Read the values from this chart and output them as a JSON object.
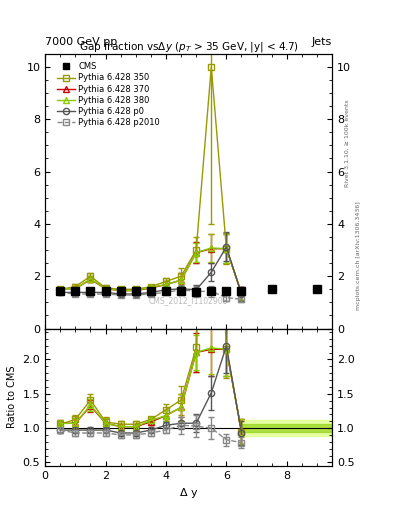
{
  "watermark": "CMS_2012_I1102908",
  "cms_x": [
    0.5,
    1.0,
    1.5,
    2.0,
    2.5,
    3.0,
    3.5,
    4.0,
    4.5,
    5.0,
    5.5,
    6.0,
    6.5,
    7.5,
    9.0
  ],
  "cms_y": [
    1.42,
    1.42,
    1.42,
    1.42,
    1.42,
    1.42,
    1.42,
    1.42,
    1.42,
    1.38,
    1.42,
    1.42,
    1.42,
    1.52,
    1.52
  ],
  "cms_yerr": [
    0.06,
    0.06,
    0.06,
    0.06,
    0.06,
    0.06,
    0.06,
    0.06,
    0.06,
    0.06,
    0.06,
    0.06,
    0.12,
    0.12,
    0.12
  ],
  "p350_x": [
    0.5,
    1.0,
    1.5,
    2.0,
    2.5,
    3.0,
    3.5,
    4.0,
    4.5,
    5.0,
    5.5,
    6.0,
    6.5
  ],
  "p350_y": [
    1.5,
    1.6,
    2.0,
    1.55,
    1.5,
    1.5,
    1.6,
    1.8,
    2.0,
    3.0,
    10.0,
    3.05,
    1.35
  ],
  "p350_yerr": [
    0.06,
    0.1,
    0.12,
    0.1,
    0.06,
    0.06,
    0.06,
    0.12,
    0.3,
    0.5,
    6.0,
    0.6,
    0.25
  ],
  "p370_x": [
    0.5,
    1.0,
    1.5,
    2.0,
    2.5,
    3.0,
    3.5,
    4.0,
    4.5,
    5.0,
    5.5,
    6.0,
    6.5
  ],
  "p370_y": [
    1.52,
    1.52,
    1.88,
    1.52,
    1.45,
    1.45,
    1.55,
    1.68,
    1.85,
    2.9,
    3.05,
    3.05,
    1.35
  ],
  "p370_yerr": [
    0.06,
    0.1,
    0.12,
    0.1,
    0.06,
    0.06,
    0.06,
    0.12,
    0.28,
    0.4,
    0.55,
    0.55,
    0.25
  ],
  "p380_x": [
    0.5,
    1.0,
    1.5,
    2.0,
    2.5,
    3.0,
    3.5,
    4.0,
    4.5,
    5.0,
    5.5,
    6.0,
    6.5
  ],
  "p380_y": [
    1.52,
    1.52,
    1.9,
    1.52,
    1.45,
    1.45,
    1.58,
    1.68,
    1.85,
    2.9,
    3.08,
    3.05,
    1.35
  ],
  "p380_yerr": [
    0.06,
    0.1,
    0.12,
    0.1,
    0.06,
    0.06,
    0.06,
    0.12,
    0.28,
    0.35,
    0.55,
    0.55,
    0.25
  ],
  "pp0_x": [
    0.5,
    1.0,
    1.5,
    2.0,
    2.5,
    3.0,
    3.5,
    4.0,
    4.5,
    5.0,
    5.5,
    6.0,
    6.5
  ],
  "pp0_y": [
    1.38,
    1.38,
    1.38,
    1.38,
    1.32,
    1.32,
    1.38,
    1.48,
    1.52,
    1.48,
    2.15,
    3.12,
    1.32
  ],
  "pp0_yerr": [
    0.06,
    0.06,
    0.06,
    0.06,
    0.06,
    0.06,
    0.06,
    0.06,
    0.12,
    0.18,
    0.35,
    0.55,
    0.25
  ],
  "pp2010_x": [
    0.5,
    1.0,
    1.5,
    2.0,
    2.5,
    3.0,
    3.5,
    4.0,
    4.5,
    5.0,
    5.5,
    6.0,
    6.5
  ],
  "pp2010_y": [
    1.38,
    1.32,
    1.32,
    1.32,
    1.28,
    1.28,
    1.32,
    1.38,
    1.48,
    1.42,
    1.42,
    1.18,
    1.12
  ],
  "pp2010_yerr": [
    0.06,
    0.06,
    0.06,
    0.06,
    0.06,
    0.06,
    0.06,
    0.06,
    0.18,
    0.22,
    0.22,
    0.12,
    0.12
  ],
  "color_350": "#999900",
  "color_370": "#cc0000",
  "color_380": "#88cc00",
  "color_pp0": "#555555",
  "color_pp2010": "#888888",
  "ylim_main": [
    0,
    10.5
  ],
  "ylim_ratio": [
    0.45,
    2.45
  ],
  "xlim": [
    0,
    9.5
  ]
}
